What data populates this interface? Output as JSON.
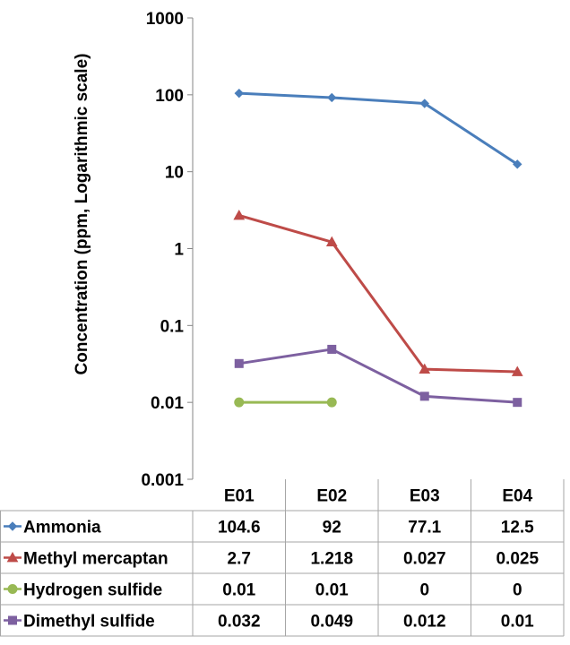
{
  "chart_data": {
    "type": "line",
    "title": "",
    "xlabel": "",
    "ylabel": "Concentration (ppm, Logarithmic scale)",
    "yscale": "log",
    "ylim": [
      0.001,
      1000
    ],
    "yticks": [
      1000,
      100,
      10,
      1,
      0.1,
      0.01,
      0.001
    ],
    "ytick_labels": [
      "1000",
      "100",
      "10",
      "1",
      "0.1",
      "0.01",
      "0.001"
    ],
    "categories": [
      "E01",
      "E02",
      "E03",
      "E04"
    ],
    "legend_position": "bottom (data table)",
    "series": [
      {
        "name": "Ammonia",
        "color": "#4a7ebb",
        "marker": "diamond",
        "values": [
          104.6,
          92,
          77.1,
          12.5
        ],
        "table_values": [
          "104.6",
          "92",
          "77.1",
          "12.5"
        ]
      },
      {
        "name": "Methyl mercaptan",
        "color": "#be4b48",
        "marker": "triangle",
        "values": [
          2.7,
          1.218,
          0.027,
          0.025
        ],
        "table_values": [
          "2.7",
          "1.218",
          "0.027",
          "0.025"
        ]
      },
      {
        "name": "Hydrogen sulfide",
        "color": "#98b954",
        "marker": "circle",
        "values": [
          0.01,
          0.01,
          0,
          0
        ],
        "table_values": [
          "0.01",
          "0.01",
          "0",
          "0"
        ]
      },
      {
        "name": "Dimethyl sulfide",
        "color": "#7d60a0",
        "marker": "square",
        "values": [
          0.032,
          0.049,
          0.012,
          0.01
        ],
        "table_values": [
          "0.032",
          "0.049",
          "0.012",
          "0.01"
        ]
      }
    ]
  }
}
